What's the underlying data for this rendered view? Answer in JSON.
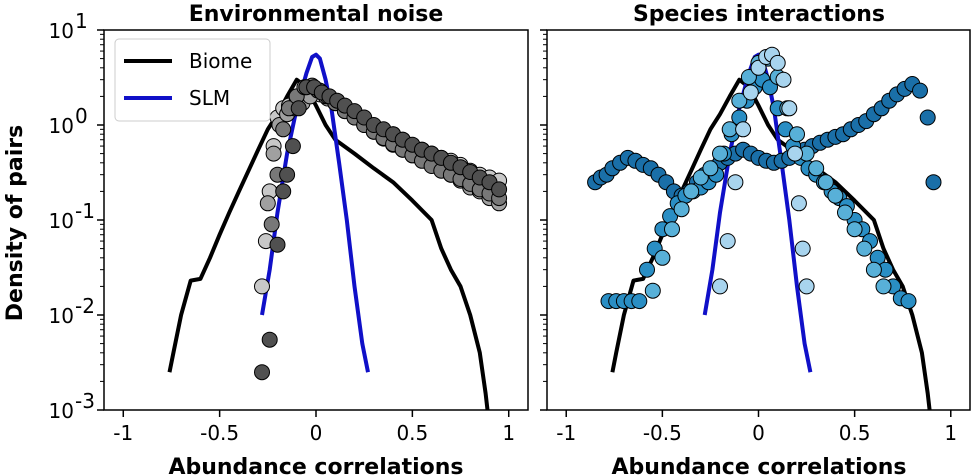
{
  "chart_data": [
    {
      "type": "scatter",
      "title": "Environmental noise",
      "xlabel": "Abundance correlations",
      "ylabel": "Density of pairs",
      "xlim": [
        -1.1,
        1.1
      ],
      "ylim": [
        0.001,
        10
      ],
      "yscale": "log",
      "x_ticks": [
        "-1",
        "-0.5",
        "0",
        "0.5",
        "1"
      ],
      "y_ticks": [
        {
          "base": "10",
          "exp": "1"
        },
        {
          "base": "10",
          "exp": "0"
        },
        {
          "base": "10",
          "exp": "-1"
        },
        {
          "base": "10",
          "exp": "-2"
        },
        {
          "base": "10",
          "exp": "-3"
        }
      ],
      "legend": {
        "placement": "top-left",
        "entries": [
          {
            "label": "Biome",
            "color": "#000000"
          },
          {
            "label": "SLM",
            "color": "#1010c8"
          }
        ]
      },
      "lines": [
        {
          "name": "Biome",
          "color": "#000000",
          "x": [
            -0.76,
            -0.74,
            -0.7,
            -0.65,
            -0.6,
            -0.55,
            -0.5,
            -0.45,
            -0.4,
            -0.35,
            -0.3,
            -0.25,
            -0.2,
            -0.15,
            -0.1,
            -0.05,
            0.0,
            0.05,
            0.1,
            0.2,
            0.3,
            0.4,
            0.5,
            0.6,
            0.65,
            0.7,
            0.75,
            0.8,
            0.85,
            0.88,
            0.89
          ],
          "y": [
            0.0025,
            0.004,
            0.01,
            0.023,
            0.024,
            0.04,
            0.07,
            0.12,
            0.2,
            0.33,
            0.55,
            0.9,
            1.3,
            2.0,
            3.0,
            2.5,
            1.6,
            1.0,
            0.7,
            0.5,
            0.35,
            0.25,
            0.16,
            0.1,
            0.05,
            0.03,
            0.02,
            0.01,
            0.004,
            0.0015,
            0.001
          ]
        },
        {
          "name": "SLM",
          "color": "#1010c8",
          "x": [
            -0.28,
            -0.24,
            -0.2,
            -0.15,
            -0.1,
            -0.05,
            -0.02,
            0.0,
            0.02,
            0.05,
            0.08,
            0.12,
            0.16,
            0.2,
            0.24,
            0.27
          ],
          "y": [
            0.01,
            0.03,
            0.12,
            0.5,
            1.5,
            3.5,
            5.2,
            5.5,
            5.0,
            3.0,
            1.5,
            0.4,
            0.1,
            0.02,
            0.005,
            0.0025
          ]
        }
      ],
      "series": [
        {
          "fill": "#c8c8c8",
          "x": [
            -0.28,
            -0.26,
            -0.24,
            -0.22,
            -0.2,
            -0.17,
            -0.14,
            -0.1,
            -0.06,
            -0.02,
            0.02,
            0.06,
            0.1,
            0.15,
            0.2,
            0.25,
            0.3,
            0.35,
            0.4,
            0.45,
            0.5,
            0.55,
            0.6,
            0.65,
            0.7,
            0.75,
            0.8,
            0.85,
            0.9,
            0.95
          ],
          "y": [
            0.02,
            0.06,
            0.2,
            0.6,
            1.2,
            1.5,
            1.6,
            1.8,
            2.0,
            2.2,
            2.1,
            1.9,
            1.7,
            1.5,
            1.3,
            1.1,
            0.95,
            0.85,
            0.8,
            0.7,
            0.6,
            0.55,
            0.5,
            0.45,
            0.42,
            0.38,
            0.33,
            0.3,
            0.28,
            0.26
          ]
        },
        {
          "fill": "#a0a0a0",
          "x": [
            -0.25,
            -0.22,
            -0.19,
            -0.15,
            -0.11,
            -0.07,
            -0.03,
            0.01,
            0.05,
            0.1,
            0.15,
            0.2,
            0.25,
            0.3,
            0.35,
            0.4,
            0.45,
            0.5,
            0.55,
            0.6,
            0.65,
            0.7,
            0.75,
            0.8,
            0.85,
            0.9,
            0.95
          ],
          "y": [
            0.15,
            0.5,
            1.0,
            1.3,
            1.5,
            1.7,
            2.0,
            2.3,
            2.0,
            1.7,
            1.4,
            1.2,
            1.0,
            0.85,
            0.72,
            0.62,
            0.55,
            0.48,
            0.43,
            0.38,
            0.34,
            0.3,
            0.26,
            0.22,
            0.2,
            0.17,
            0.15
          ]
        },
        {
          "fill": "#787878",
          "x": [
            -0.23,
            -0.2,
            -0.17,
            -0.14,
            -0.1,
            -0.06,
            -0.02,
            0.02,
            0.06,
            0.1,
            0.15,
            0.2,
            0.25,
            0.3,
            0.35,
            0.4,
            0.45,
            0.5,
            0.55,
            0.6,
            0.65,
            0.7,
            0.75,
            0.8,
            0.85,
            0.9,
            0.95
          ],
          "y": [
            0.09,
            0.3,
            0.9,
            1.5,
            2.0,
            2.5,
            2.6,
            2.3,
            2.0,
            1.7,
            1.4,
            1.2,
            1.0,
            0.85,
            0.73,
            0.63,
            0.55,
            0.48,
            0.42,
            0.37,
            0.33,
            0.3,
            0.27,
            0.24,
            0.21,
            0.19,
            0.17
          ]
        },
        {
          "fill": "#505050",
          "x": [
            -0.28,
            -0.24,
            -0.2,
            -0.17,
            -0.15,
            -0.12,
            -0.09,
            -0.05,
            -0.01,
            0.03,
            0.07,
            0.11,
            0.15,
            0.2,
            0.25,
            0.3,
            0.35,
            0.4,
            0.45,
            0.5,
            0.55,
            0.6,
            0.65,
            0.7,
            0.75,
            0.8,
            0.85,
            0.9,
            0.95
          ],
          "y": [
            0.0025,
            0.0055,
            0.055,
            0.2,
            0.3,
            0.6,
            1.5,
            2.5,
            2.5,
            2.2,
            2.0,
            1.8,
            1.6,
            1.4,
            1.2,
            1.0,
            0.9,
            0.8,
            0.7,
            0.62,
            0.55,
            0.5,
            0.45,
            0.4,
            0.36,
            0.32,
            0.28,
            0.25,
            0.21
          ]
        }
      ]
    },
    {
      "type": "scatter",
      "title": "Species interactions",
      "xlabel": "Abundance correlations",
      "ylabel": "",
      "xlim": [
        -1.1,
        1.1
      ],
      "ylim": [
        0.001,
        10
      ],
      "yscale": "log",
      "x_ticks": [
        "-1",
        "-0.5",
        "0",
        "0.5",
        "1"
      ],
      "lines": [
        {
          "name": "Biome",
          "color": "#000000",
          "x": [
            -0.76,
            -0.74,
            -0.7,
            -0.65,
            -0.6,
            -0.55,
            -0.5,
            -0.45,
            -0.4,
            -0.35,
            -0.3,
            -0.25,
            -0.2,
            -0.15,
            -0.1,
            -0.05,
            0.0,
            0.05,
            0.1,
            0.2,
            0.3,
            0.4,
            0.5,
            0.6,
            0.65,
            0.7,
            0.75,
            0.8,
            0.85,
            0.88,
            0.89
          ],
          "y": [
            0.0025,
            0.004,
            0.01,
            0.023,
            0.024,
            0.04,
            0.07,
            0.12,
            0.2,
            0.33,
            0.55,
            0.9,
            1.3,
            2.0,
            3.0,
            2.5,
            1.6,
            1.0,
            0.7,
            0.5,
            0.35,
            0.25,
            0.16,
            0.1,
            0.05,
            0.03,
            0.02,
            0.01,
            0.004,
            0.0015,
            0.001
          ]
        },
        {
          "name": "SLM",
          "color": "#1010c8",
          "x": [
            -0.28,
            -0.24,
            -0.2,
            -0.15,
            -0.1,
            -0.05,
            -0.02,
            0.0,
            0.02,
            0.05,
            0.08,
            0.12,
            0.16,
            0.2,
            0.24,
            0.27
          ],
          "y": [
            0.01,
            0.03,
            0.12,
            0.5,
            1.5,
            3.5,
            5.2,
            5.5,
            5.0,
            3.0,
            1.5,
            0.4,
            0.1,
            0.02,
            0.005,
            0.0025
          ]
        }
      ],
      "series": [
        {
          "fill": "#1a6fa8",
          "x": [
            -0.85,
            -0.82,
            -0.79,
            -0.76,
            -0.72,
            -0.68,
            -0.64,
            -0.6,
            -0.56,
            -0.52,
            -0.48,
            -0.44,
            -0.4,
            -0.36,
            -0.32,
            -0.28,
            -0.24,
            -0.2,
            -0.16,
            -0.12,
            -0.08,
            -0.04,
            0.0,
            0.04,
            0.08,
            0.12,
            0.16,
            0.2,
            0.24,
            0.28,
            0.32,
            0.36,
            0.4,
            0.44,
            0.48,
            0.52,
            0.56,
            0.6,
            0.64,
            0.68,
            0.72,
            0.76,
            0.8,
            0.84,
            0.88,
            0.91
          ],
          "y": [
            0.25,
            0.28,
            0.3,
            0.35,
            0.4,
            0.45,
            0.42,
            0.38,
            0.35,
            0.3,
            0.25,
            0.2,
            0.18,
            0.2,
            0.25,
            0.3,
            0.35,
            0.4,
            0.45,
            0.5,
            0.55,
            0.5,
            0.45,
            0.42,
            0.4,
            0.42,
            0.45,
            0.5,
            0.55,
            0.6,
            0.65,
            0.7,
            0.75,
            0.8,
            0.9,
            1.0,
            1.1,
            1.3,
            1.5,
            1.8,
            2.1,
            2.4,
            2.7,
            2.3,
            1.2,
            0.25
          ]
        },
        {
          "fill": "#2a8ec4",
          "x": [
            -0.78,
            -0.74,
            -0.7,
            -0.66,
            -0.62,
            -0.58,
            -0.54,
            -0.5,
            -0.46,
            -0.42,
            -0.38,
            -0.34,
            -0.3,
            -0.26,
            -0.22,
            -0.18,
            -0.14,
            -0.1,
            -0.06,
            -0.02,
            0.02,
            0.06,
            0.1,
            0.14,
            0.18,
            0.22,
            0.26,
            0.3,
            0.34,
            0.38,
            0.42,
            0.46,
            0.5,
            0.54,
            0.58,
            0.62,
            0.66,
            0.7,
            0.74,
            0.78
          ],
          "y": [
            0.014,
            0.014,
            0.014,
            0.014,
            0.014,
            0.03,
            0.05,
            0.08,
            0.11,
            0.15,
            0.18,
            0.2,
            0.22,
            0.25,
            0.3,
            0.5,
            0.8,
            1.2,
            1.8,
            2.5,
            3.0,
            2.5,
            1.5,
            0.9,
            0.6,
            0.45,
            0.35,
            0.3,
            0.25,
            0.2,
            0.17,
            0.14,
            0.1,
            0.08,
            0.06,
            0.04,
            0.03,
            0.02,
            0.015,
            0.014
          ]
        },
        {
          "fill": "#58b0d8",
          "x": [
            -0.55,
            -0.5,
            -0.45,
            -0.4,
            -0.35,
            -0.3,
            -0.25,
            -0.2,
            -0.15,
            -0.1,
            -0.05,
            0.0,
            0.05,
            0.1,
            0.15,
            0.2,
            0.25,
            0.3,
            0.35,
            0.4,
            0.45,
            0.5,
            0.55,
            0.6,
            0.65
          ],
          "y": [
            0.018,
            0.04,
            0.08,
            0.13,
            0.2,
            0.28,
            0.35,
            0.5,
            0.9,
            1.8,
            3.2,
            4.5,
            5.0,
            3.2,
            1.5,
            0.8,
            0.5,
            0.35,
            0.25,
            0.18,
            0.12,
            0.08,
            0.05,
            0.03,
            0.02
          ]
        },
        {
          "fill": "#a8d4ee",
          "x": [
            -0.2,
            -0.16,
            -0.12,
            -0.08,
            -0.04,
            0.0,
            0.04,
            0.07,
            0.1,
            0.13,
            0.16,
            0.19,
            0.21,
            0.23,
            0.25
          ],
          "y": [
            0.02,
            0.06,
            0.25,
            0.9,
            2.2,
            4.0,
            5.2,
            5.5,
            4.5,
            3.0,
            1.5,
            0.5,
            0.15,
            0.05,
            0.02
          ]
        }
      ]
    }
  ]
}
